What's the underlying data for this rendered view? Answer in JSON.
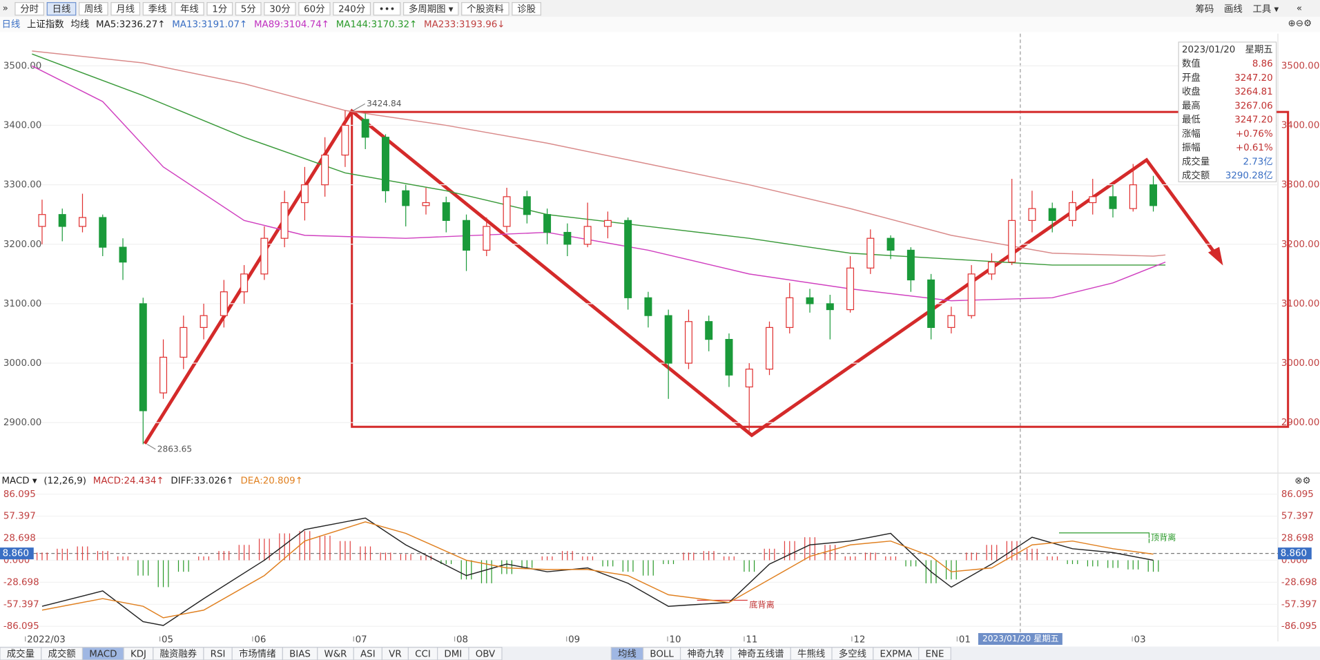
{
  "toolbar": {
    "left": [
      "分时",
      "日线",
      "周线",
      "月线",
      "季线",
      "年线",
      "1分",
      "5分",
      "30分",
      "60分",
      "240分",
      "•••",
      "多周期图 ▾",
      "个股资料",
      "诊股"
    ],
    "selected": 1,
    "right": [
      "筹码",
      "画线",
      "工具 ▾"
    ]
  },
  "infobar": {
    "period": "日线",
    "index": "上证指数",
    "ma_label": "均线",
    "mas": [
      {
        "text": "MA5:3236.27↑",
        "color": "#222222"
      },
      {
        "text": "MA13:3191.07↑",
        "color": "#3a6fc4"
      },
      {
        "text": "MA89:3104.74↑",
        "color": "#c030c0"
      },
      {
        "text": "MA144:3170.32↑",
        "color": "#2a9a2a"
      },
      {
        "text": "MA233:3193.96↓",
        "color": "#c04040"
      }
    ]
  },
  "chart_data": [
    {
      "type": "candlestick",
      "up_color": "#e03030",
      "down_color": "#1a9a3a",
      "xlim": [
        -0.833,
        61.167
      ],
      "ylim": [
        2825,
        3540
      ],
      "yticks": [
        {
          "value": 2900,
          "label": "2900.00"
        },
        {
          "value": 3000,
          "label": "3000.00"
        },
        {
          "value": 3100,
          "label": "3100.00"
        },
        {
          "value": 3200,
          "label": "3200.00"
        },
        {
          "value": 3300,
          "label": "3300.00"
        },
        {
          "value": 3400,
          "label": "3400.00"
        },
        {
          "value": 3500,
          "label": "3500.00"
        }
      ],
      "xticks": [
        {
          "value": -0.83,
          "label": "2022/03"
        },
        {
          "value": 5.83,
          "label": "05"
        },
        {
          "value": 10.42,
          "label": "06"
        },
        {
          "value": 15.42,
          "label": "07"
        },
        {
          "value": 20.42,
          "label": "08"
        },
        {
          "value": 25.96,
          "label": "09"
        },
        {
          "value": 30.96,
          "label": "10"
        },
        {
          "value": 34.75,
          "label": "11"
        },
        {
          "value": 40.08,
          "label": "12"
        },
        {
          "value": 45.29,
          "label": "01"
        },
        {
          "value": 53.96,
          "label": "03"
        }
      ],
      "candles": [
        [
          3230,
          3275,
          3200,
          3250
        ],
        [
          3250,
          3260,
          3205,
          3230
        ],
        [
          3230,
          3285,
          3220,
          3245
        ],
        [
          3245,
          3250,
          3180,
          3195
        ],
        [
          3195,
          3210,
          3140,
          3170
        ],
        [
          3100,
          3110,
          2863.65,
          2920
        ],
        [
          2950,
          3040,
          2940,
          3010
        ],
        [
          3010,
          3080,
          2990,
          3060
        ],
        [
          3060,
          3100,
          3040,
          3080
        ],
        [
          3080,
          3140,
          3060,
          3120
        ],
        [
          3120,
          3165,
          3100,
          3150
        ],
        [
          3150,
          3230,
          3140,
          3210
        ],
        [
          3210,
          3290,
          3195,
          3270
        ],
        [
          3270,
          3330,
          3240,
          3300
        ],
        [
          3300,
          3380,
          3280,
          3350
        ],
        [
          3350,
          3424.84,
          3330,
          3400
        ],
        [
          3410,
          3420,
          3360,
          3380
        ],
        [
          3380,
          3385,
          3270,
          3290
        ],
        [
          3290,
          3300,
          3230,
          3265
        ],
        [
          3265,
          3295,
          3250,
          3270
        ],
        [
          3270,
          3280,
          3220,
          3240
        ],
        [
          3240,
          3250,
          3155,
          3190
        ],
        [
          3190,
          3245,
          3180,
          3230
        ],
        [
          3230,
          3295,
          3220,
          3280
        ],
        [
          3280,
          3290,
          3235,
          3250
        ],
        [
          3250,
          3260,
          3200,
          3220
        ],
        [
          3220,
          3235,
          3180,
          3200
        ],
        [
          3200,
          3270,
          3195,
          3230
        ],
        [
          3230,
          3255,
          3210,
          3240
        ],
        [
          3240,
          3245,
          3090,
          3110
        ],
        [
          3110,
          3120,
          3060,
          3080
        ],
        [
          3080,
          3090,
          2940,
          3000
        ],
        [
          3000,
          3090,
          2990,
          3070
        ],
        [
          3070,
          3080,
          3020,
          3040
        ],
        [
          3040,
          3050,
          2960,
          2980
        ],
        [
          2960,
          3000,
          2885,
          2990
        ],
        [
          2990,
          3070,
          2980,
          3060
        ],
        [
          3060,
          3135,
          3050,
          3110
        ],
        [
          3110,
          3125,
          3085,
          3100
        ],
        [
          3100,
          3115,
          3040,
          3090
        ],
        [
          3090,
          3180,
          3085,
          3160
        ],
        [
          3160,
          3225,
          3150,
          3210
        ],
        [
          3210,
          3215,
          3175,
          3190
        ],
        [
          3190,
          3195,
          3120,
          3140
        ],
        [
          3140,
          3150,
          3040,
          3060
        ],
        [
          3060,
          3095,
          3050,
          3080
        ],
        [
          3080,
          3165,
          3075,
          3150
        ],
        [
          3150,
          3185,
          3140,
          3170
        ],
        [
          3170,
          3310,
          3165,
          3240
        ],
        [
          3240,
          3290,
          3220,
          3260
        ],
        [
          3260,
          3270,
          3220,
          3240
        ],
        [
          3240,
          3290,
          3230,
          3270
        ],
        [
          3270,
          3310,
          3250,
          3280
        ],
        [
          3280,
          3300,
          3245,
          3260
        ],
        [
          3260,
          3335,
          3255,
          3300
        ],
        [
          3300,
          3315,
          3255,
          3265
        ]
      ],
      "series": [
        {
          "color": "#d98a8a",
          "x": [
            -0.5,
            5,
            10,
            15,
            20,
            25,
            30,
            35,
            40,
            45,
            50,
            55,
            55.6
          ],
          "values": [
            3525,
            3505,
            3470,
            3425,
            3400,
            3370,
            3335,
            3300,
            3260,
            3215,
            3185,
            3180,
            3182
          ]
        },
        {
          "color": "#3a9a3a",
          "x": [
            -0.5,
            5,
            10,
            15,
            20,
            25,
            30,
            35,
            40,
            45,
            50,
            55.6
          ],
          "values": [
            3520,
            3450,
            3380,
            3320,
            3290,
            3250,
            3230,
            3210,
            3185,
            3175,
            3165,
            3165
          ]
        },
        {
          "color": "#d040c0",
          "x": [
            -0.5,
            3,
            6,
            10,
            13,
            18,
            25,
            30,
            35,
            40,
            45,
            50,
            53,
            55.6
          ],
          "values": [
            3500,
            3440,
            3330,
            3240,
            3215,
            3210,
            3220,
            3190,
            3150,
            3125,
            3105,
            3110,
            3135,
            3170
          ]
        }
      ],
      "high_mark": {
        "value": 3424.84,
        "x": 15.4
      },
      "low_mark": {
        "value": 2863.65,
        "x": 5.2
      }
    },
    {
      "type": "macd",
      "title": "MACD ▾",
      "params": "(12,26,9)",
      "labels": [
        {
          "text": "MACD:24.434↑",
          "color": "#c03030"
        },
        {
          "text": "DIFF:33.026↑",
          "color": "#222222"
        },
        {
          "text": "DEA:20.809↑",
          "color": "#e08020"
        }
      ],
      "ylim": [
        -86.095,
        86.095
      ],
      "yticks": [
        86.095,
        57.397,
        28.698,
        {
          "value": 0,
          "label": "0.000"
        },
        -28.698,
        -57.397,
        -86.095
      ],
      "current": {
        "value": 8.86,
        "label": "8.860"
      },
      "histogram": [
        10,
        15,
        18,
        12,
        5,
        -20,
        -35,
        -15,
        5,
        12,
        20,
        28,
        35,
        38,
        32,
        25,
        18,
        10,
        8,
        6,
        -5,
        -25,
        -30,
        -18,
        -10,
        5,
        12,
        5,
        -8,
        -15,
        -20,
        -5,
        10,
        12,
        5,
        -15,
        15,
        25,
        30,
        20,
        5,
        10,
        5,
        -8,
        -30,
        -25,
        10,
        20,
        25,
        15,
        5,
        -5,
        -8,
        -10,
        -12,
        -15
      ],
      "series": [
        {
          "color": "#222222",
          "x": [
            0,
            3,
            5,
            6,
            8,
            11,
            13,
            16,
            18,
            21,
            23,
            25,
            27,
            29,
            31,
            34,
            36,
            38,
            40,
            42,
            44,
            45,
            47,
            49,
            51,
            53,
            55
          ],
          "values": [
            -60,
            -40,
            -80,
            -85,
            -50,
            0,
            40,
            55,
            20,
            -20,
            -5,
            -15,
            -10,
            -30,
            -60,
            -55,
            -5,
            20,
            25,
            35,
            -15,
            -35,
            -5,
            30,
            15,
            10,
            0
          ]
        },
        {
          "color": "#e08020",
          "x": [
            0,
            3,
            5,
            6,
            8,
            11,
            13,
            16,
            18,
            21,
            23,
            25,
            27,
            29,
            31,
            34,
            36,
            38,
            40,
            42,
            44,
            45,
            47,
            49,
            51,
            53,
            55
          ],
          "values": [
            -65,
            -50,
            -60,
            -75,
            -65,
            -20,
            25,
            50,
            35,
            0,
            -10,
            -12,
            -12,
            -20,
            -45,
            -55,
            -25,
            5,
            20,
            25,
            5,
            -15,
            -10,
            20,
            25,
            15,
            8
          ]
        }
      ],
      "annotations": [
        "底背离",
        "顶背离"
      ]
    }
  ],
  "info_box": {
    "date": "2023/01/20",
    "weekday": "星期五",
    "rows": [
      [
        "数值",
        "8.86"
      ],
      [
        "开盘",
        "3247.20"
      ],
      [
        "收盘",
        "3264.81"
      ],
      [
        "最高",
        "3267.06"
      ],
      [
        "最低",
        "3247.20"
      ],
      [
        "涨幅",
        "+0.76%"
      ],
      [
        "振幅",
        "+0.61%"
      ],
      [
        "成交量",
        "2.73亿"
      ],
      [
        "成交额",
        "3290.28亿"
      ]
    ]
  },
  "tabs_left": [
    "成交量",
    "成交额",
    "MACD",
    "KDJ",
    "融资融券",
    "RSI",
    "市场情绪",
    "BIAS",
    "W&R",
    "ASI",
    "VR",
    "CCI",
    "DMI",
    "OBV"
  ],
  "tabs_right": [
    "均线",
    "BOLL",
    "神奇九转",
    "神奇五线谱",
    "牛熊线",
    "多空线",
    "EXPMA",
    "ENE"
  ],
  "cursor_date": "2023/01/20 星期五"
}
